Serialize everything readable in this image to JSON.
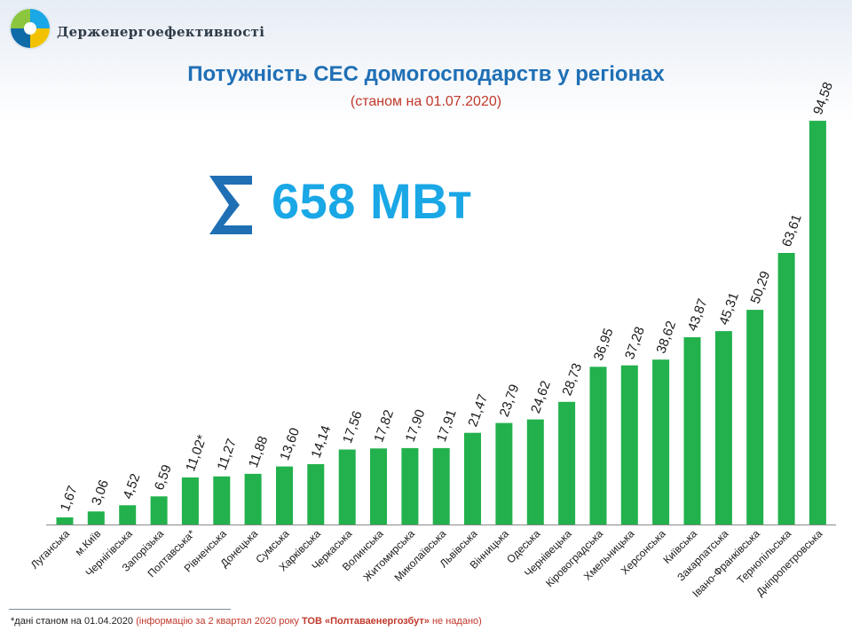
{
  "org": {
    "name": "Держенергоефективності"
  },
  "header": {
    "title": "Потужність СЕС домогосподарств у регіонах",
    "subtitle": "(станом на 01.07.2020)"
  },
  "total": {
    "text": "658 МВт"
  },
  "footnote": {
    "prefix": "*дані станом на 01.04.2020 ",
    "middle": "(інформацію за 2 квартал 2020 року ",
    "company": "ТОВ «Полтаваенергозбут»",
    "suffix": " не надано)"
  },
  "colors": {
    "bar": "#22b14c",
    "title": "#1f6fb5",
    "accent": "#1aa7e6",
    "subtitle": "#c0392b"
  },
  "chart_data": {
    "type": "bar",
    "title": "Потужність СЕС домогосподарств у регіонах",
    "xlabel": "",
    "ylabel": "",
    "ylim": [
      0,
      100
    ],
    "grid": false,
    "categories": [
      "Луганська",
      "м.Київ",
      "Чернігівська",
      "Запорізька",
      "Полтавська*",
      "Рівненська",
      "Донецька",
      "Сумська",
      "Харківська",
      "Черкаська",
      "Волинська",
      "Житомирська",
      "Миколаївська",
      "Львівська",
      "Вінницька",
      "Одеська",
      "Чернівецька",
      "Кіровоградська",
      "Хмельницька",
      "Херсонська",
      "Київська",
      "Закарпатська",
      "Івано-Франківська",
      "Тернопільська",
      "Дніпропетровська"
    ],
    "values": [
      1.67,
      3.06,
      4.52,
      6.59,
      11.02,
      11.27,
      11.88,
      13.6,
      14.14,
      17.56,
      17.82,
      17.9,
      17.91,
      21.47,
      23.79,
      24.62,
      28.73,
      36.95,
      37.28,
      38.62,
      43.87,
      45.31,
      50.29,
      63.61,
      94.58
    ],
    "value_labels": [
      "1,67",
      "3,06",
      "4,52",
      "6,59",
      "11,02*",
      "11,27",
      "11,88",
      "13,60",
      "14,14",
      "17,56",
      "17,82",
      "17,90",
      "17,91",
      "21,47",
      "23,79",
      "24,62",
      "28,73",
      "36,95",
      "37,28",
      "38,62",
      "43,87",
      "45,31",
      "50,29",
      "63,61",
      "94,58"
    ]
  }
}
